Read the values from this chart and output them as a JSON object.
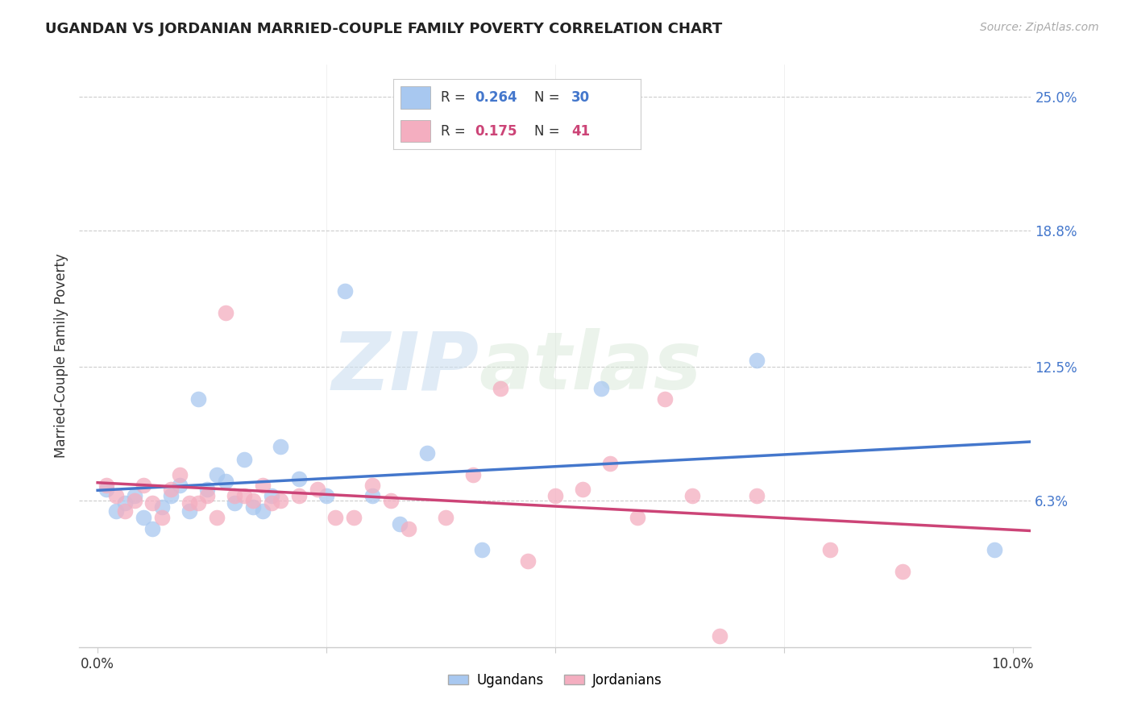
{
  "title": "UGANDAN VS JORDANIAN MARRIED-COUPLE FAMILY POVERTY CORRELATION CHART",
  "source": "Source: ZipAtlas.com",
  "ylabel": "Married-Couple Family Poverty",
  "xlim": [
    -0.002,
    0.102
  ],
  "ylim": [
    -0.005,
    0.265
  ],
  "ytick_labels": [
    "6.3%",
    "12.5%",
    "18.8%",
    "25.0%"
  ],
  "ytick_positions": [
    0.063,
    0.125,
    0.188,
    0.25
  ],
  "background_color": "#ffffff",
  "grid_color": "#cccccc",
  "ugandan_color": "#a8c8f0",
  "jordanian_color": "#f4aec0",
  "ugandan_line_color": "#4477cc",
  "jordanian_line_color": "#cc4477",
  "legend_r_ugandan": "0.264",
  "legend_n_ugandan": "30",
  "legend_r_jordanian": "0.175",
  "legend_n_jordanian": "41",
  "ugandan_x": [
    0.001,
    0.002,
    0.003,
    0.004,
    0.005,
    0.006,
    0.007,
    0.008,
    0.009,
    0.01,
    0.011,
    0.012,
    0.013,
    0.014,
    0.015,
    0.016,
    0.017,
    0.018,
    0.019,
    0.02,
    0.022,
    0.025,
    0.027,
    0.03,
    0.033,
    0.036,
    0.042,
    0.055,
    0.072,
    0.098
  ],
  "ugandan_y": [
    0.068,
    0.058,
    0.062,
    0.065,
    0.055,
    0.05,
    0.06,
    0.065,
    0.07,
    0.058,
    0.11,
    0.068,
    0.075,
    0.072,
    0.062,
    0.082,
    0.06,
    0.058,
    0.065,
    0.088,
    0.073,
    0.065,
    0.16,
    0.065,
    0.052,
    0.085,
    0.04,
    0.115,
    0.128,
    0.04
  ],
  "jordanian_x": [
    0.001,
    0.002,
    0.003,
    0.004,
    0.005,
    0.006,
    0.007,
    0.008,
    0.009,
    0.01,
    0.011,
    0.012,
    0.013,
    0.014,
    0.015,
    0.016,
    0.017,
    0.018,
    0.019,
    0.02,
    0.022,
    0.024,
    0.026,
    0.028,
    0.03,
    0.032,
    0.034,
    0.038,
    0.041,
    0.044,
    0.047,
    0.05,
    0.053,
    0.056,
    0.059,
    0.062,
    0.065,
    0.068,
    0.072,
    0.08,
    0.088
  ],
  "jordanian_y": [
    0.07,
    0.065,
    0.058,
    0.063,
    0.07,
    0.062,
    0.055,
    0.068,
    0.075,
    0.062,
    0.062,
    0.065,
    0.055,
    0.15,
    0.065,
    0.065,
    0.063,
    0.07,
    0.062,
    0.063,
    0.065,
    0.068,
    0.055,
    0.055,
    0.07,
    0.063,
    0.05,
    0.055,
    0.075,
    0.115,
    0.035,
    0.065,
    0.068,
    0.08,
    0.055,
    0.11,
    0.065,
    0.0,
    0.065,
    0.04,
    0.03
  ],
  "watermark_zip": "ZIP",
  "watermark_atlas": "atlas"
}
